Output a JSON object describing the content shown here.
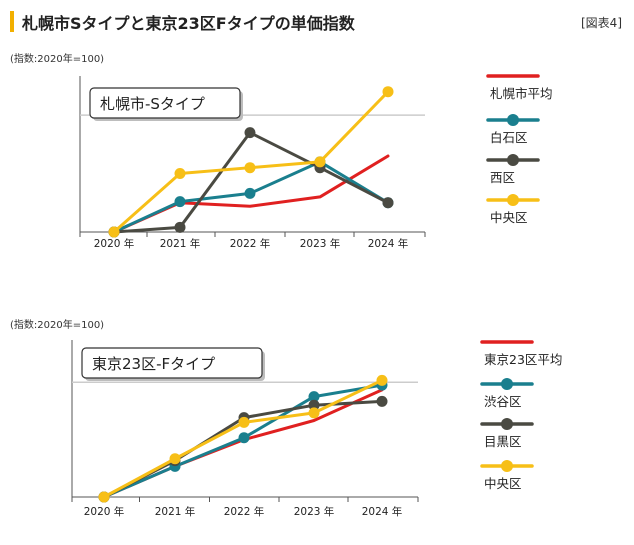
{
  "header": {
    "title": "札幌市Sタイプと東京23区Fタイプの単価指数",
    "figure_label": "[図表4]"
  },
  "colors": {
    "red": "#e02020",
    "teal": "#1a7f8e",
    "dark": "#4a4a42",
    "yellow": "#f7bf17",
    "axis": "#555555",
    "ref": "#cccccc"
  },
  "chart_data": [
    {
      "type": "line",
      "note": "(指数:2020年=100)",
      "title": "札幌市-Sタイプ",
      "categories": [
        "2020 年",
        "2021 年",
        "2022 年",
        "2023 年",
        "2024 年"
      ],
      "ylim": [
        100,
        113
      ],
      "reference_line": 110,
      "series": [
        {
          "name": "札幌市平均",
          "color_key": "red",
          "marker": false,
          "values": [
            100,
            102.5,
            102.2,
            103,
            106.5
          ]
        },
        {
          "name": "白石区",
          "color_key": "teal",
          "marker": true,
          "values": [
            100,
            102.6,
            103.3,
            106,
            102.5
          ]
        },
        {
          "name": "西区",
          "color_key": "dark",
          "marker": true,
          "values": [
            100,
            100.4,
            108.5,
            105.5,
            102.5
          ]
        },
        {
          "name": "中央区",
          "color_key": "yellow",
          "marker": true,
          "values": [
            100,
            105,
            105.5,
            106,
            112
          ]
        }
      ]
    },
    {
      "type": "line",
      "note": "(指数:2020年=100)",
      "title": "東京23区-Fタイプ",
      "categories": [
        "2020 年",
        "2021 年",
        "2022 年",
        "2023 年",
        "2024 年"
      ],
      "ylim": [
        100,
        116
      ],
      "reference_line": 112,
      "series": [
        {
          "name": "東京23区平均",
          "color_key": "red",
          "marker": false,
          "values": [
            100,
            103.2,
            106,
            108,
            111.2
          ]
        },
        {
          "name": "渋谷区",
          "color_key": "teal",
          "marker": true,
          "values": [
            100,
            103.2,
            106.2,
            110.5,
            111.7
          ]
        },
        {
          "name": "目黒区",
          "color_key": "dark",
          "marker": true,
          "values": [
            100,
            103.8,
            108.3,
            109.6,
            110
          ]
        },
        {
          "name": "中央区",
          "color_key": "yellow",
          "marker": true,
          "values": [
            100,
            104,
            107.8,
            108.8,
            112.2
          ]
        }
      ]
    }
  ]
}
